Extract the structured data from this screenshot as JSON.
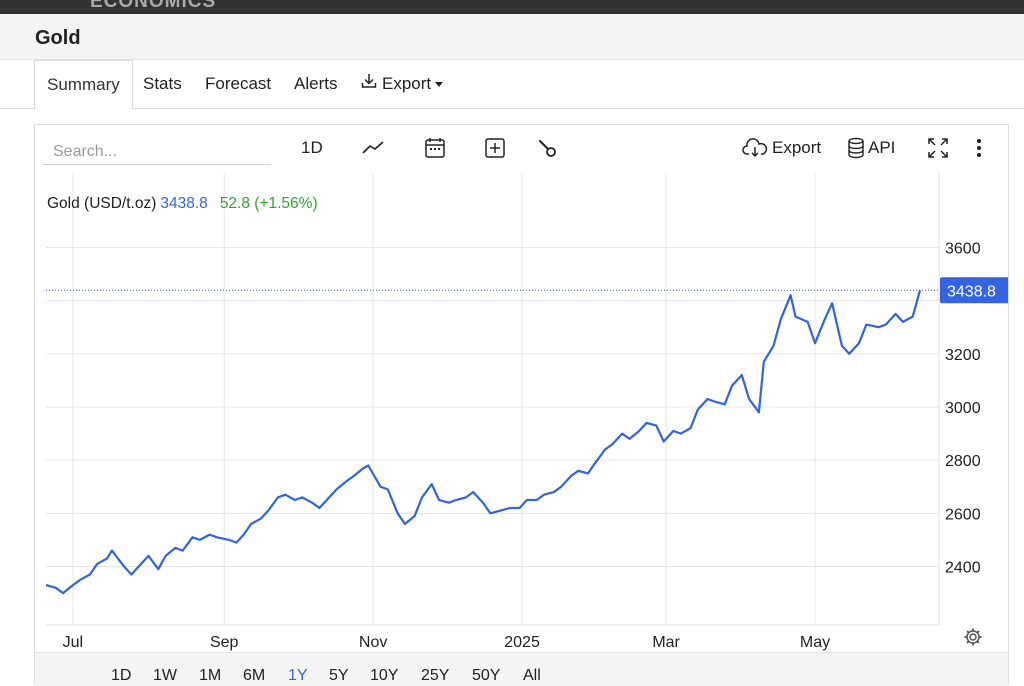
{
  "header": {
    "brand": "ECONOMICS",
    "title": "Gold"
  },
  "tabs": [
    {
      "label": "Summary",
      "active": true
    },
    {
      "label": "Stats"
    },
    {
      "label": "Forecast"
    },
    {
      "label": "Alerts"
    },
    {
      "label": "Export"
    }
  ],
  "toolbar": {
    "search_placeholder": "Search...",
    "interval": "1D",
    "export_label": "Export",
    "api_label": "API",
    "icons": [
      "line-chart-icon",
      "calendar-icon",
      "compare-plus-icon",
      "wrench-icon",
      "cloud-download-icon",
      "database-icon",
      "fullscreen-icon",
      "more-vertical-icon"
    ]
  },
  "legend": {
    "name": "Gold (USD/t.oz)",
    "price": "3438.8",
    "change": "52.8",
    "change_pct": "(+1.56%)"
  },
  "last_price_label": "3438.8",
  "colors": {
    "line": "#2f63e6",
    "accent": "#3464e0",
    "positive": "#2fa52f",
    "grid": "#e6e6e6"
  },
  "range_buttons": [
    "1D",
    "1W",
    "1M",
    "6M",
    "1Y",
    "5Y",
    "10Y",
    "25Y",
    "50Y",
    "All"
  ],
  "active_range": "1Y",
  "chart_data": {
    "type": "line",
    "title": "Gold (USD/t.oz)",
    "x_tick_labels": [
      "Jul",
      "Sep",
      "Nov",
      "2025",
      "Mar",
      "May"
    ],
    "y_tick_labels": [
      "2400",
      "2600",
      "2800",
      "3000",
      "3200",
      "3600"
    ],
    "ylim": [
      2180,
      3880
    ],
    "grid": true,
    "series": [
      {
        "name": "Gold (USD/t.oz)",
        "x": [
          "2024-06-20",
          "2024-06-24",
          "2024-06-27",
          "2024-07-01",
          "2024-07-04",
          "2024-07-08",
          "2024-07-11",
          "2024-07-15",
          "2024-07-17",
          "2024-07-22",
          "2024-07-25",
          "2024-07-29",
          "2024-08-01",
          "2024-08-05",
          "2024-08-08",
          "2024-08-12",
          "2024-08-15",
          "2024-08-19",
          "2024-08-22",
          "2024-08-26",
          "2024-08-29",
          "2024-09-03",
          "2024-09-06",
          "2024-09-09",
          "2024-09-12",
          "2024-09-16",
          "2024-09-19",
          "2024-09-23",
          "2024-09-26",
          "2024-09-30",
          "2024-10-03",
          "2024-10-07",
          "2024-10-10",
          "2024-10-14",
          "2024-10-17",
          "2024-10-21",
          "2024-10-24",
          "2024-10-28",
          "2024-10-30",
          "2024-11-04",
          "2024-11-07",
          "2024-11-11",
          "2024-11-14",
          "2024-11-18",
          "2024-11-21",
          "2024-11-25",
          "2024-11-28",
          "2024-12-02",
          "2024-12-05",
          "2024-12-09",
          "2024-12-12",
          "2024-12-16",
          "2024-12-19",
          "2024-12-23",
          "2024-12-27",
          "2024-12-31",
          "2025-01-03",
          "2025-01-07",
          "2025-01-10",
          "2025-01-14",
          "2025-01-17",
          "2025-01-21",
          "2025-01-24",
          "2025-01-28",
          "2025-01-31",
          "2025-02-04",
          "2025-02-07",
          "2025-02-11",
          "2025-02-14",
          "2025-02-18",
          "2025-02-21",
          "2025-02-25",
          "2025-02-28",
          "2025-03-04",
          "2025-03-07",
          "2025-03-11",
          "2025-03-14",
          "2025-03-18",
          "2025-03-21",
          "2025-03-25",
          "2025-03-28",
          "2025-04-01",
          "2025-04-04",
          "2025-04-08",
          "2025-04-10",
          "2025-04-14",
          "2025-04-17",
          "2025-04-21",
          "2025-04-23",
          "2025-04-28",
          "2025-05-01",
          "2025-05-05",
          "2025-05-08",
          "2025-05-12",
          "2025-05-15",
          "2025-05-19",
          "2025-05-22",
          "2025-05-27",
          "2025-05-30",
          "2025-06-03",
          "2025-06-06",
          "2025-06-10",
          "2025-06-13"
        ],
        "y": [
          2330,
          2320,
          2300,
          2330,
          2350,
          2370,
          2410,
          2430,
          2460,
          2400,
          2370,
          2410,
          2440,
          2390,
          2440,
          2470,
          2460,
          2510,
          2500,
          2520,
          2510,
          2500,
          2490,
          2520,
          2560,
          2580,
          2610,
          2660,
          2670,
          2650,
          2660,
          2640,
          2620,
          2660,
          2690,
          2720,
          2740,
          2770,
          2780,
          2700,
          2690,
          2600,
          2560,
          2590,
          2660,
          2710,
          2650,
          2640,
          2650,
          2660,
          2680,
          2640,
          2600,
          2610,
          2620,
          2620,
          2650,
          2650,
          2670,
          2680,
          2700,
          2740,
          2760,
          2750,
          2790,
          2840,
          2860,
          2900,
          2880,
          2910,
          2940,
          2930,
          2870,
          2910,
          2900,
          2920,
          2990,
          3030,
          3020,
          3010,
          3080,
          3120,
          3030,
          2980,
          3170,
          3230,
          3330,
          3420,
          3340,
          3320,
          3240,
          3330,
          3390,
          3230,
          3200,
          3240,
          3310,
          3300,
          3310,
          3350,
          3320,
          3340,
          3438.8
        ]
      }
    ]
  }
}
